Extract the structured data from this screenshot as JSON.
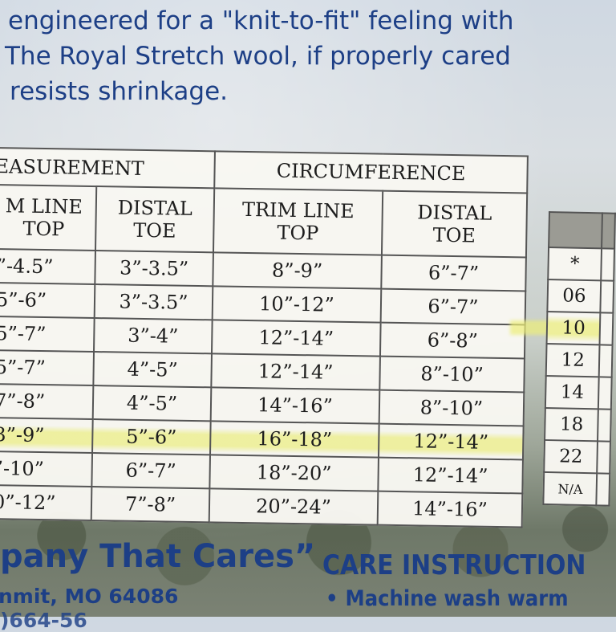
{
  "intro_lines": [
    "engineered for a \"knit-to-fit\" feeling with",
    "The Royal Stretch wool, if properly cared",
    "resists shrinkage."
  ],
  "size_table": {
    "group_headers": [
      "EASUREMENT",
      "CIRCUMFERENCE"
    ],
    "sub_headers": [
      [
        "M LINE",
        "TOP"
      ],
      [
        "DISTAL",
        "TOE"
      ],
      [
        "TRIM LINE",
        "TOP"
      ],
      [
        "DISTAL",
        "TOE"
      ]
    ],
    "rows": [
      [
        "”-4.5”",
        "3”-3.5”",
        "8”-9”",
        "6”-7”"
      ],
      [
        "5”-6”",
        "3”-3.5”",
        "10”-12”",
        "6”-7”"
      ],
      [
        "5”-7”",
        "3”-4”",
        "12”-14”",
        "6”-8”"
      ],
      [
        "5”-7”",
        "4”-5”",
        "12”-14”",
        "8”-10”"
      ],
      [
        "7”-8”",
        "4”-5”",
        "14”-16”",
        "8”-10”"
      ],
      [
        "3”-9”",
        "5”-6”",
        "16”-18”",
        "12”-14”"
      ],
      [
        "”-10”",
        "6”-7”",
        "18”-20”",
        "12”-14”"
      ],
      [
        "0”-12”",
        "7”-8”",
        "20”-24”",
        "14”-16”"
      ]
    ],
    "highlight_color": "#ecee8c"
  },
  "side_table": {
    "values": [
      "*",
      "06",
      "10",
      "12",
      "14",
      "18",
      "22",
      "N/A"
    ],
    "header_color": "#9b9b94"
  },
  "bottom": {
    "tagline": "pany That Cares”",
    "address": "nmit, MO 64086",
    "phone": ")664-56",
    "care_title": "CARE INSTRUCTION",
    "care_bullet": "•",
    "care_item": "Machine wash warm"
  },
  "colors": {
    "brand_blue": "#1d3f86"
  }
}
